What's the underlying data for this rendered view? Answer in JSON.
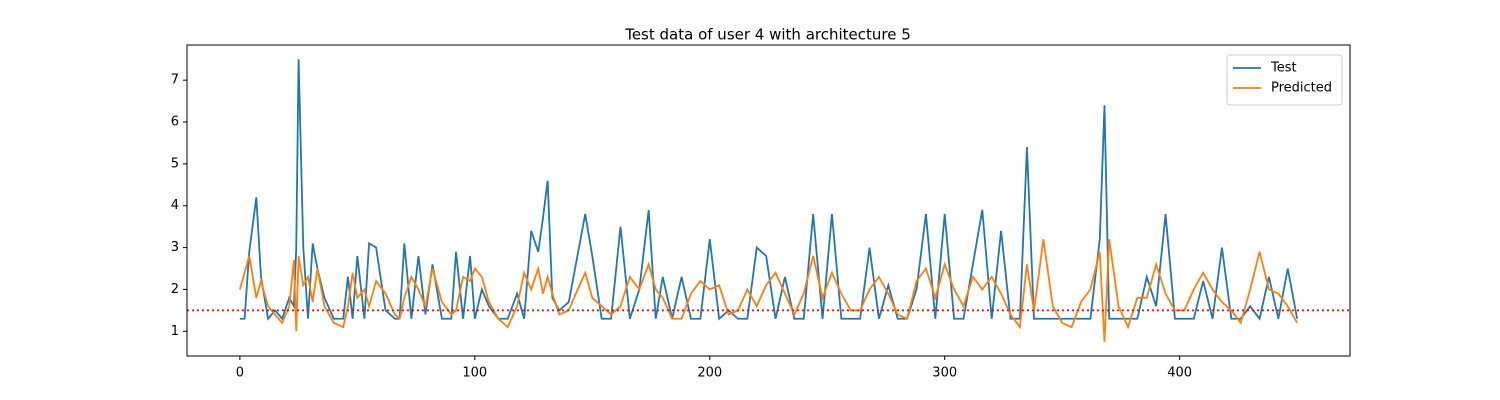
{
  "chart_data": {
    "type": "line",
    "title": "Test data of user 4 with architecture 5",
    "x": [
      0,
      2,
      4,
      7,
      9,
      12,
      15,
      18,
      21,
      23,
      24,
      25,
      27,
      29,
      31,
      33,
      36,
      40,
      44,
      46,
      48,
      50,
      53,
      55,
      58,
      62,
      66,
      68,
      70,
      73,
      76,
      79,
      82,
      86,
      90,
      92,
      95,
      98,
      100,
      103,
      106,
      110,
      114,
      118,
      121,
      124,
      127,
      129,
      131,
      133,
      136,
      140,
      143,
      147,
      150,
      154,
      158,
      162,
      166,
      170,
      174,
      177,
      180,
      184,
      188,
      192,
      196,
      200,
      204,
      208,
      212,
      216,
      220,
      224,
      228,
      232,
      236,
      240,
      244,
      248,
      252,
      256,
      260,
      264,
      268,
      272,
      276,
      280,
      284,
      288,
      292,
      296,
      300,
      304,
      308,
      312,
      316,
      320,
      324,
      328,
      332,
      335,
      338,
      342,
      346,
      350,
      354,
      358,
      362,
      366,
      368,
      370,
      374,
      378,
      382,
      386,
      390,
      394,
      398,
      402,
      406,
      410,
      414,
      418,
      422,
      426,
      430,
      434,
      438,
      442,
      446,
      450
    ],
    "series": [
      {
        "name": "Test",
        "color": "#1f77b4",
        "values": [
          1.3,
          1.3,
          2.9,
          4.2,
          2.3,
          1.3,
          1.5,
          1.3,
          1.8,
          1.6,
          3.0,
          7.5,
          3.0,
          1.3,
          3.1,
          2.5,
          1.8,
          1.3,
          1.3,
          2.3,
          1.3,
          2.8,
          1.3,
          3.1,
          3.0,
          1.5,
          1.3,
          1.3,
          3.1,
          1.3,
          2.8,
          1.4,
          2.6,
          1.3,
          1.3,
          2.9,
          1.3,
          2.8,
          1.3,
          2.0,
          1.6,
          1.3,
          1.3,
          1.9,
          1.3,
          3.4,
          2.9,
          3.7,
          4.6,
          1.8,
          1.5,
          1.7,
          2.6,
          3.8,
          2.8,
          1.3,
          1.3,
          3.5,
          1.3,
          2.0,
          3.9,
          1.3,
          2.3,
          1.3,
          2.3,
          1.3,
          1.3,
          3.2,
          1.3,
          1.5,
          1.3,
          1.3,
          3.0,
          2.8,
          1.3,
          2.3,
          1.3,
          1.3,
          3.8,
          1.3,
          3.8,
          1.3,
          1.3,
          1.3,
          3.0,
          1.3,
          2.1,
          1.3,
          1.3,
          2.0,
          3.8,
          1.3,
          3.8,
          1.3,
          1.3,
          2.6,
          3.9,
          1.3,
          3.4,
          1.3,
          1.3,
          5.4,
          1.3,
          1.3,
          1.3,
          1.3,
          1.3,
          1.3,
          1.3,
          3.2,
          6.4,
          1.3,
          1.3,
          1.3,
          1.3,
          2.3,
          1.6,
          3.8,
          1.3,
          1.3,
          1.3,
          2.2,
          1.3,
          3.0,
          1.3,
          1.3,
          1.6,
          1.3,
          2.3,
          1.3,
          2.5,
          1.3
        ]
      },
      {
        "name": "Predicted",
        "color": "#ff7f0e",
        "values": [
          2.0,
          2.4,
          2.8,
          1.8,
          2.2,
          1.6,
          1.4,
          1.2,
          1.6,
          2.7,
          1.0,
          2.8,
          2.1,
          2.3,
          1.7,
          2.5,
          1.6,
          1.2,
          1.1,
          1.6,
          2.4,
          1.8,
          2.0,
          1.6,
          2.2,
          1.9,
          1.4,
          1.3,
          1.8,
          2.3,
          2.0,
          1.6,
          2.5,
          1.7,
          1.4,
          1.5,
          2.3,
          2.2,
          2.5,
          2.3,
          1.7,
          1.3,
          1.1,
          1.6,
          2.4,
          2.0,
          2.5,
          1.9,
          2.3,
          1.9,
          1.4,
          1.5,
          1.9,
          2.4,
          1.8,
          1.6,
          1.4,
          1.6,
          2.3,
          2.0,
          2.6,
          2.0,
          1.8,
          1.3,
          1.3,
          1.9,
          2.2,
          2.0,
          2.1,
          1.4,
          1.5,
          2.0,
          1.6,
          2.1,
          2.4,
          1.9,
          1.4,
          1.9,
          2.8,
          1.8,
          2.4,
          1.9,
          1.5,
          1.5,
          2.0,
          2.3,
          1.9,
          1.4,
          1.3,
          2.2,
          2.5,
          1.8,
          2.6,
          2.0,
          1.6,
          2.3,
          2.0,
          2.3,
          1.9,
          1.4,
          1.1,
          2.6,
          1.5,
          3.2,
          1.6,
          1.2,
          1.1,
          1.7,
          2.0,
          2.9,
          0.75,
          3.2,
          1.6,
          1.1,
          1.8,
          1.8,
          2.6,
          1.9,
          1.5,
          1.5,
          2.0,
          2.4,
          2.0,
          1.7,
          1.5,
          1.2,
          2.0,
          2.9,
          2.0,
          1.9,
          1.6,
          1.2
        ]
      }
    ],
    "hlines": [
      {
        "value": 1.5,
        "color": "#ff0000"
      }
    ],
    "xlim": [
      -22.5,
      472.5
    ],
    "xticks": [
      0,
      100,
      200,
      300,
      400
    ],
    "ylim": [
      0.41,
      7.84
    ],
    "yticks": [
      1,
      2,
      3,
      4,
      5,
      6,
      7
    ],
    "legend": "upper right"
  }
}
